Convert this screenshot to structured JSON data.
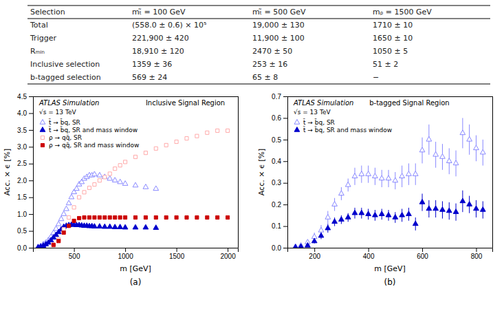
{
  "chart_data": [
    {
      "type": "table",
      "columns": [
        "Selection",
        "mₜ̃ = 100 GeV",
        "mₜ̃ = 500 GeV",
        "mᵨ = 1500 GeV"
      ],
      "rows": [
        [
          "Total",
          "(558.0 ± 0.6) × 10⁵",
          "19,000 ± 130",
          "1710 ± 10"
        ],
        [
          "Trigger",
          "221,900 ± 420",
          "11,900 ± 100",
          "1650 ± 10"
        ],
        [
          "Rₘᵢₙ",
          "18,910 ± 120",
          "2470 ± 50",
          "1050 ± 5"
        ],
        [
          "Inclusive selection",
          "1359 ± 36",
          "253 ± 16",
          "51 ± 2"
        ],
        [
          "b-tagged selection",
          "569 ± 24",
          "65 ± 8",
          "−"
        ]
      ]
    },
    {
      "type": "scatter",
      "title": "Inclusive Signal Region",
      "annotations": [
        "ATLAS Simulation",
        "√s = 13 TeV",
        "(a)"
      ],
      "xlabel": "m [GeV]",
      "ylabel": "Acc. × ϵ [%]",
      "xlim": [
        100,
        2100
      ],
      "ylim": [
        0,
        4.5
      ],
      "xticks": [
        500,
        1000,
        1500,
        2000
      ],
      "yticks": [
        {
          "value": 0,
          "label": "0.0"
        },
        0.5,
        {
          "value": 1,
          "label": "1.0"
        },
        1.5,
        {
          "value": 2,
          "label": "2.0"
        },
        2.5,
        {
          "value": 3,
          "label": "3.0"
        },
        3.5,
        {
          "value": 4,
          "label": "4.0"
        },
        4.5
      ],
      "grid": false,
      "legend": "upper left",
      "series": [
        {
          "name": "t̃ → b̄q, SR",
          "color": "#8888ff",
          "marker": "triangle-open",
          "x": [
            150,
            175,
            200,
            225,
            250,
            275,
            300,
            325,
            350,
            375,
            400,
            425,
            450,
            475,
            500,
            525,
            550,
            575,
            600,
            625,
            650,
            675,
            700,
            750,
            800,
            850,
            900,
            950,
            1000,
            1100,
            1200,
            1300
          ],
          "values": [
            0.02,
            0.05,
            0.1,
            0.15,
            0.22,
            0.32,
            0.44,
            0.56,
            0.7,
            0.85,
            1.0,
            1.15,
            1.32,
            1.5,
            1.65,
            1.75,
            1.88,
            1.95,
            2.05,
            2.1,
            2.15,
            2.15,
            2.18,
            2.15,
            2.1,
            2.05,
            2.0,
            1.95,
            1.9,
            1.85,
            1.8,
            1.75
          ]
        },
        {
          "name": "t̃ → b̄q, SR and mass window",
          "color": "#0000cc",
          "marker": "triangle",
          "x": [
            150,
            175,
            200,
            225,
            250,
            275,
            300,
            325,
            350,
            375,
            400,
            425,
            450,
            475,
            500,
            525,
            550,
            575,
            600,
            625,
            650,
            675,
            700,
            750,
            800,
            850,
            900,
            950,
            1000,
            1100,
            1200,
            1300
          ],
          "values": [
            0.01,
            0.03,
            0.06,
            0.1,
            0.15,
            0.22,
            0.3,
            0.38,
            0.46,
            0.54,
            0.62,
            0.65,
            0.67,
            0.68,
            0.68,
            0.67,
            0.67,
            0.66,
            0.65,
            0.65,
            0.64,
            0.64,
            0.63,
            0.63,
            0.62,
            0.62,
            0.61,
            0.61,
            0.6,
            0.6,
            0.6,
            0.59
          ]
        },
        {
          "name": "ρ → qq̄, SR",
          "color": "#ffaaaa",
          "marker": "square-open",
          "x": [
            300,
            350,
            400,
            450,
            500,
            550,
            600,
            650,
            700,
            750,
            800,
            850,
            900,
            950,
            1000,
            1100,
            1200,
            1300,
            1400,
            1500,
            1600,
            1700,
            1800,
            1900,
            2000
          ],
          "values": [
            0.1,
            0.25,
            0.55,
            0.9,
            1.2,
            1.5,
            1.65,
            1.78,
            1.88,
            2.0,
            2.1,
            2.2,
            2.35,
            2.45,
            2.55,
            2.7,
            2.82,
            2.95,
            3.05,
            3.15,
            3.25,
            3.32,
            3.42,
            3.48,
            3.48
          ]
        },
        {
          "name": "ρ → qq̄, SR and mass window",
          "color": "#cc0000",
          "marker": "square",
          "x": [
            300,
            350,
            400,
            450,
            500,
            550,
            600,
            650,
            700,
            750,
            800,
            850,
            900,
            950,
            1000,
            1100,
            1200,
            1300,
            1400,
            1500,
            1600,
            1700,
            1800,
            1900,
            2000
          ],
          "values": [
            0.08,
            0.2,
            0.45,
            0.65,
            0.8,
            0.88,
            0.9,
            0.9,
            0.9,
            0.9,
            0.9,
            0.9,
            0.9,
            0.9,
            0.9,
            0.9,
            0.9,
            0.9,
            0.9,
            0.9,
            0.9,
            0.9,
            0.9,
            0.9,
            0.9
          ]
        }
      ]
    },
    {
      "type": "scatter",
      "title": "b-tagged Signal Region",
      "annotations": [
        "ATLAS Simulation",
        "√s = 13 TeV",
        "(b)"
      ],
      "xlabel": "m [GeV]",
      "ylabel": "Acc. × ϵ [%]",
      "xlim": [
        100,
        860
      ],
      "ylim": [
        0,
        0.7
      ],
      "xticks": [
        200,
        400,
        600,
        800
      ],
      "yticks": [
        {
          "value": 0,
          "label": "0.0"
        },
        0.1,
        0.2,
        0.3,
        0.4,
        0.5,
        0.6,
        0.7
      ],
      "grid": false,
      "legend": "upper left",
      "series": [
        {
          "name": "t̃ → b̄q, SR",
          "color": "#8888ff",
          "marker": "triangle-open",
          "x": [
            130,
            150,
            175,
            200,
            225,
            250,
            275,
            300,
            325,
            350,
            375,
            400,
            425,
            450,
            475,
            500,
            525,
            550,
            575,
            600,
            625,
            650,
            675,
            700,
            725,
            750,
            775,
            800,
            825
          ],
          "values": [
            0.005,
            0.01,
            0.025,
            0.05,
            0.08,
            0.14,
            0.2,
            0.25,
            0.29,
            0.33,
            0.34,
            0.34,
            0.33,
            0.32,
            0.32,
            0.31,
            0.33,
            0.34,
            0.34,
            0.45,
            0.5,
            0.43,
            0.42,
            0.4,
            0.39,
            0.53,
            0.5,
            0.46,
            0.44
          ],
          "errors": [
            0.005,
            0.005,
            0.01,
            0.02,
            0.025,
            0.03,
            0.03,
            0.03,
            0.03,
            0.04,
            0.04,
            0.04,
            0.04,
            0.04,
            0.04,
            0.04,
            0.05,
            0.05,
            0.05,
            0.06,
            0.07,
            0.06,
            0.06,
            0.06,
            0.06,
            0.07,
            0.07,
            0.06,
            0.06
          ]
        },
        {
          "name": "t̃ → b̄q, SR and mass window",
          "color": "#0000cc",
          "marker": "triangle",
          "x": [
            130,
            150,
            175,
            200,
            225,
            250,
            275,
            300,
            325,
            350,
            375,
            400,
            425,
            450,
            475,
            500,
            525,
            550,
            575,
            600,
            625,
            650,
            675,
            700,
            725,
            750,
            775,
            800,
            825
          ],
          "values": [
            0.002,
            0.005,
            0.01,
            0.03,
            0.055,
            0.09,
            0.12,
            0.13,
            0.14,
            0.16,
            0.16,
            0.155,
            0.15,
            0.155,
            0.15,
            0.14,
            0.15,
            0.155,
            0.11,
            0.21,
            0.18,
            0.18,
            0.175,
            0.17,
            0.165,
            0.215,
            0.2,
            0.18,
            0.175
          ],
          "errors": [
            0.002,
            0.003,
            0.005,
            0.01,
            0.015,
            0.02,
            0.02,
            0.02,
            0.02,
            0.025,
            0.025,
            0.025,
            0.025,
            0.025,
            0.025,
            0.025,
            0.03,
            0.03,
            0.03,
            0.04,
            0.04,
            0.04,
            0.04,
            0.04,
            0.04,
            0.05,
            0.04,
            0.04,
            0.04
          ]
        }
      ]
    }
  ]
}
